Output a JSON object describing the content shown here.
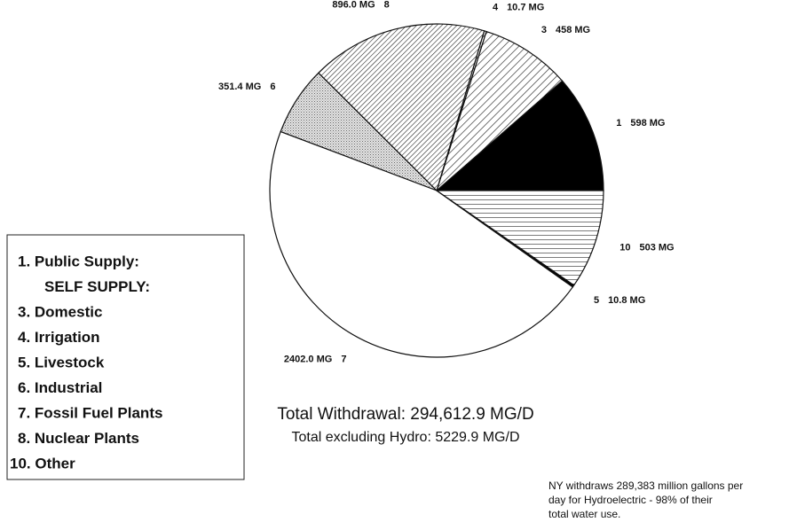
{
  "chart_data": {
    "type": "pie",
    "categories": [
      "1",
      "3",
      "4",
      "8",
      "6",
      "7",
      "5",
      "10"
    ],
    "values": [
      598,
      458,
      10.7,
      896.0,
      351.4,
      2402.0,
      10.8,
      503
    ],
    "value_labels": [
      "598 MG",
      "458 MG",
      "10.7 MG",
      "896.0 MG",
      "351.4 MG",
      "2402.0 MG",
      "10.8 MG",
      "503 MG"
    ],
    "fills": [
      "solid-black",
      "diagonal",
      "diagonal",
      "diagonal-dense",
      "stipple",
      "white",
      "solid-black",
      "horizontal"
    ],
    "legend": [
      "1. Public Supply:",
      "SELF SUPPLY:",
      "3. Domestic",
      "4. Irrigation",
      "5. Livestock",
      "6. Industrial",
      "7. Fossil Fuel Plants",
      "8. Nuclear Plants",
      "10. Other"
    ],
    "title": "Total Withdrawal: 294,612.9 MG/D",
    "subtitle": "Total excluding Hydro: 5229.9 MG/D",
    "annotation": [
      "NY withdraws 289,383 million gallons per",
      "day for Hydroelectric - 98% of their",
      "total water use."
    ]
  }
}
